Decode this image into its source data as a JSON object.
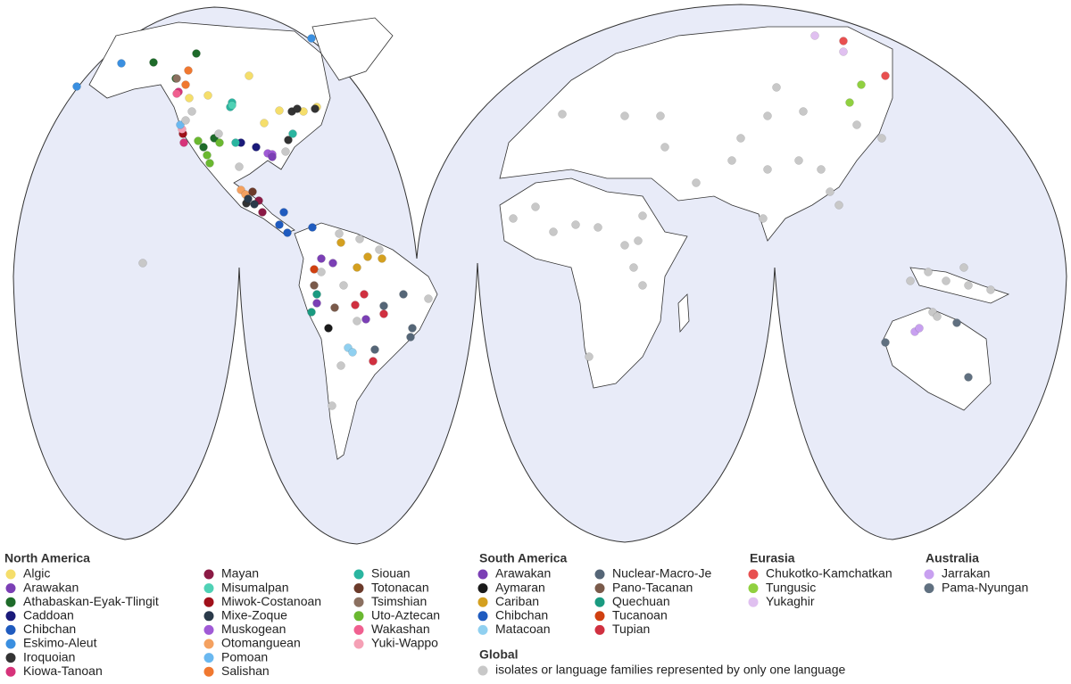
{
  "legend": {
    "groups": [
      {
        "title": "North America",
        "items": [
          {
            "name": "Algic",
            "color": "#f5de6b"
          },
          {
            "name": "Arawakan",
            "color": "#7b3fb5"
          },
          {
            "name": "Athabaskan-Eyak-Tlingit",
            "color": "#1e6b2a"
          },
          {
            "name": "Caddoan",
            "color": "#1a1a7a"
          },
          {
            "name": "Chibchan",
            "color": "#1f5bbf"
          },
          {
            "name": "Eskimo-Aleut",
            "color": "#3a8fe0"
          },
          {
            "name": "Iroquoian",
            "color": "#333333"
          },
          {
            "name": "Kiowa-Tanoan",
            "color": "#d6337a"
          },
          {
            "name": "Mayan",
            "color": "#8b1a45"
          },
          {
            "name": "Misumalpan",
            "color": "#4fd1b5"
          },
          {
            "name": "Miwok-Costanoan",
            "color": "#a0101a"
          },
          {
            "name": "Mixe-Zoque",
            "color": "#2a3a4a"
          },
          {
            "name": "Muskogean",
            "color": "#a05ad6"
          },
          {
            "name": "Otomanguean",
            "color": "#f4a160"
          },
          {
            "name": "Pomoan",
            "color": "#6ab8f0"
          },
          {
            "name": "Salishan",
            "color": "#f07830"
          },
          {
            "name": "Siouan",
            "color": "#2ab5a0"
          },
          {
            "name": "Totonacan",
            "color": "#6b3a2a"
          },
          {
            "name": "Tsimshian",
            "color": "#8b7060"
          },
          {
            "name": "Uto-Aztecan",
            "color": "#6ab830"
          },
          {
            "name": "Wakashan",
            "color": "#f06090"
          },
          {
            "name": "Yuki-Wappo",
            "color": "#f5a0b5"
          }
        ]
      },
      {
        "title": "South America",
        "items": [
          {
            "name": "Arawakan",
            "color": "#7b3fb5"
          },
          {
            "name": "Aymaran",
            "color": "#1a1a1a"
          },
          {
            "name": "Cariban",
            "color": "#d4a020"
          },
          {
            "name": "Chibchan",
            "color": "#1f5bbf"
          },
          {
            "name": "Matacoan",
            "color": "#90d0f0"
          },
          {
            "name": "Nuclear-Macro-Je",
            "color": "#556677"
          },
          {
            "name": "Pano-Tacanan",
            "color": "#7a5a4a"
          },
          {
            "name": "Quechuan",
            "color": "#1a9a80"
          },
          {
            "name": "Tucanoan",
            "color": "#d04010"
          },
          {
            "name": "Tupian",
            "color": "#d03040"
          }
        ]
      },
      {
        "title": "Eurasia",
        "items": [
          {
            "name": "Chukotko-Kamchatkan",
            "color": "#e85050"
          },
          {
            "name": "Tungusic",
            "color": "#90d040"
          },
          {
            "name": "Yukaghir",
            "color": "#e0c0f0"
          }
        ]
      },
      {
        "title": "Australia",
        "items": [
          {
            "name": "Jarrakan",
            "color": "#c8a0f0"
          },
          {
            "name": "Pama-Nyungan",
            "color": "#607080"
          }
        ]
      },
      {
        "title": "Global",
        "items": [
          {
            "name": "isolates or language families represented by only one language",
            "color": "#c8c8c8"
          }
        ]
      }
    ]
  }
}
